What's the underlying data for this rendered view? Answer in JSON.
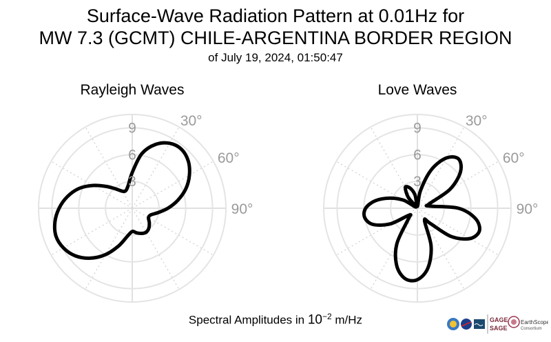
{
  "header": {
    "title_line1": "Surface-Wave Radiation Pattern at 0.01Hz for",
    "title_line2": "MW 7.3 (GCMT) CHILE-ARGENTINA BORDER REGION",
    "subtitle": "of July 19, 2024, 01:50:47"
  },
  "footer": {
    "label_prefix": "Spectral Amplitudes in ",
    "unit_base": "10",
    "unit_exponent": "−2",
    "unit_suffix": " m/Hz"
  },
  "logos": {
    "gage": "GAGE",
    "sage": "SAGE",
    "earthscope": "EarthScope",
    "consortium": "Consortium"
  },
  "colors": {
    "pattern": "#000000",
    "grid": "#e4e4e4",
    "tick_text": "#9a9a9a"
  },
  "chart_data": [
    {
      "type": "polar-line",
      "title": "Rayleigh Waves",
      "radial_ticks": [
        "3",
        "6",
        "9"
      ],
      "radial_range": [
        0,
        10.5
      ],
      "angular_ticks": [
        "30°",
        "60°",
        "90°"
      ],
      "angle_zero": "north",
      "angle_direction": "clockwise",
      "grid": true,
      "series": [
        {
          "theta_deg": [
            0,
            10,
            20,
            30,
            40,
            50,
            60,
            70,
            80,
            90,
            100,
            110,
            120,
            130,
            140,
            150,
            160,
            170,
            180,
            190,
            200,
            210,
            220,
            230,
            240,
            250,
            260,
            270,
            280,
            290,
            300,
            310,
            320,
            330,
            340,
            350
          ],
          "r": [
            4.0,
            6.2,
            7.6,
            8.4,
            8.6,
            8.2,
            7.4,
            6.4,
            5.2,
            4.0,
            2.9,
            2.2,
            2.1,
            2.5,
            2.9,
            3.1,
            3.0,
            2.8,
            2.6,
            3.2,
            4.5,
            6.0,
            7.3,
            8.3,
            8.9,
            9.1,
            8.8,
            8.2,
            7.4,
            6.4,
            5.1,
            3.8,
            2.8,
            2.2,
            2.1,
            2.6
          ]
        }
      ]
    },
    {
      "type": "polar-line",
      "title": "Love Waves",
      "radial_ticks": [
        "3",
        "6",
        "9"
      ],
      "radial_range": [
        0,
        10.5
      ],
      "angular_ticks": [
        "30°",
        "60°",
        "90°"
      ],
      "angle_zero": "north",
      "angle_direction": "clockwise",
      "grid": true,
      "series": [
        {
          "theta_deg": [
            0,
            10,
            20,
            30,
            40,
            50,
            60,
            70,
            80,
            90,
            100,
            110,
            120,
            130,
            140,
            150,
            160,
            170,
            180,
            190,
            200,
            210,
            220,
            230,
            240,
            250,
            260,
            270,
            280,
            290,
            300,
            310,
            320,
            330,
            340,
            350
          ],
          "r": [
            0.2,
            2.0,
            4.6,
            6.5,
            7.2,
            6.3,
            4.2,
            1.4,
            1.4,
            4.6,
            6.6,
            7.4,
            6.8,
            4.9,
            2.2,
            1.6,
            4.5,
            6.8,
            8.0,
            8.0,
            6.8,
            4.6,
            1.6,
            1.2,
            3.5,
            5.3,
            6.0,
            5.8,
            4.8,
            3.3,
            1.8,
            0.2,
            1.6,
            2.7,
            2.4,
            1.5
          ]
        }
      ]
    }
  ]
}
